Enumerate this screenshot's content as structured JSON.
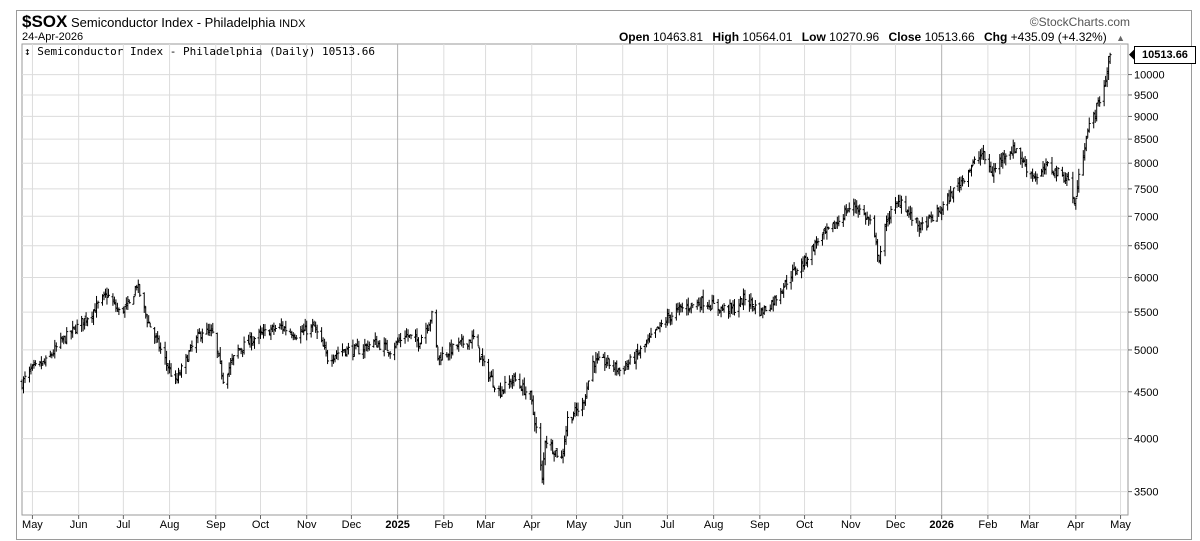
{
  "header": {
    "symbol": "$SOX",
    "name": "Semiconductor Index - Philadelphia",
    "exchange": "INDX",
    "date": "24-Apr-2026",
    "brand": "©StockCharts.com",
    "ohlc": {
      "open_label": "Open",
      "open": "10463.81",
      "high_label": "High",
      "high": "10564.01",
      "low_label": "Low",
      "low": "10270.96",
      "close_label": "Close",
      "close": "10513.66",
      "chg_label": "Chg",
      "chg": "+435.09 (+4.32%)",
      "chg_marker": "▲"
    }
  },
  "legend": {
    "icon": "ohlc-bar-icon",
    "text": "Semiconductor Index - Philadelphia (Daily) 10513.66"
  },
  "last_price_label": "10513.66",
  "chart_data": {
    "type": "ohlc",
    "scale": "log",
    "ylim": [
      3300,
      10800
    ],
    "y_ticks": [
      3500,
      4000,
      4500,
      5000,
      5500,
      6000,
      6500,
      7000,
      7500,
      8000,
      8500,
      9000,
      9500,
      10000
    ],
    "x_ticks": [
      {
        "label": "May",
        "date": "2024-05-01"
      },
      {
        "label": "Jun",
        "date": "2024-06-01"
      },
      {
        "label": "Jul",
        "date": "2024-07-01"
      },
      {
        "label": "Aug",
        "date": "2024-08-01"
      },
      {
        "label": "Sep",
        "date": "2024-09-01"
      },
      {
        "label": "Oct",
        "date": "2024-10-01"
      },
      {
        "label": "Nov",
        "date": "2024-11-01"
      },
      {
        "label": "Dec",
        "date": "2024-12-01"
      },
      {
        "label": "2025",
        "date": "2025-01-01",
        "bold": true
      },
      {
        "label": "Feb",
        "date": "2025-02-01"
      },
      {
        "label": "Mar",
        "date": "2025-03-01"
      },
      {
        "label": "Apr",
        "date": "2025-04-01"
      },
      {
        "label": "May",
        "date": "2025-05-01"
      },
      {
        "label": "Jun",
        "date": "2025-06-01"
      },
      {
        "label": "Jul",
        "date": "2025-07-01"
      },
      {
        "label": "Aug",
        "date": "2025-08-01"
      },
      {
        "label": "Sep",
        "date": "2025-09-01"
      },
      {
        "label": "Oct",
        "date": "2025-10-01"
      },
      {
        "label": "Nov",
        "date": "2025-11-01"
      },
      {
        "label": "Dec",
        "date": "2025-12-01"
      },
      {
        "label": "2026",
        "date": "2026-01-01",
        "bold": true
      },
      {
        "label": "Feb",
        "date": "2026-02-01"
      },
      {
        "label": "Mar",
        "date": "2026-03-01"
      },
      {
        "label": "Apr",
        "date": "2026-04-01"
      },
      {
        "label": "May",
        "date": "2026-05-01"
      }
    ],
    "x_range": [
      "2024-04-24",
      "2026-05-06"
    ],
    "grid": true,
    "price_path": [
      [
        "2024-04-24",
        4600
      ],
      [
        "2024-04-30",
        4750
      ],
      [
        "2024-05-10",
        4850
      ],
      [
        "2024-05-20",
        5100
      ],
      [
        "2024-05-31",
        5300
      ],
      [
        "2024-06-10",
        5500
      ],
      [
        "2024-06-20",
        5750
      ],
      [
        "2024-06-28",
        5500
      ],
      [
        "2024-07-05",
        5600
      ],
      [
        "2024-07-10",
        5900
      ],
      [
        "2024-07-17",
        5400
      ],
      [
        "2024-07-26",
        5000
      ],
      [
        "2024-08-05",
        4600
      ],
      [
        "2024-08-15",
        5000
      ],
      [
        "2024-08-23",
        5250
      ],
      [
        "2024-08-30",
        5200
      ],
      [
        "2024-09-06",
        4650
      ],
      [
        "2024-09-16",
        5000
      ],
      [
        "2024-09-27",
        5150
      ],
      [
        "2024-10-07",
        5250
      ],
      [
        "2024-10-15",
        5300
      ],
      [
        "2024-10-25",
        5200
      ],
      [
        "2024-11-06",
        5300
      ],
      [
        "2024-11-15",
        4900
      ],
      [
        "2024-11-25",
        5000
      ],
      [
        "2024-12-06",
        5000
      ],
      [
        "2024-12-16",
        5100
      ],
      [
        "2024-12-27",
        5000
      ],
      [
        "2025-01-06",
        5200
      ],
      [
        "2025-01-15",
        5100
      ],
      [
        "2025-01-24",
        5450
      ],
      [
        "2025-01-28",
        4900
      ],
      [
        "2025-02-10",
        5050
      ],
      [
        "2025-02-21",
        5150
      ],
      [
        "2025-02-28",
        4800
      ],
      [
        "2025-03-10",
        4500
      ],
      [
        "2025-03-20",
        4650
      ],
      [
        "2025-03-31",
        4450
      ],
      [
        "2025-04-04",
        4100
      ],
      [
        "2025-04-08",
        3600
      ],
      [
        "2025-04-10",
        4000
      ],
      [
        "2025-04-21",
        3800
      ],
      [
        "2025-04-25",
        4200
      ],
      [
        "2025-05-05",
        4350
      ],
      [
        "2025-05-12",
        4850
      ],
      [
        "2025-05-21",
        4850
      ],
      [
        "2025-05-30",
        4750
      ],
      [
        "2025-06-09",
        4900
      ],
      [
        "2025-06-20",
        5150
      ],
      [
        "2025-06-30",
        5400
      ],
      [
        "2025-07-10",
        5550
      ],
      [
        "2025-07-25",
        5650
      ],
      [
        "2025-08-05",
        5550
      ],
      [
        "2025-08-15",
        5550
      ],
      [
        "2025-08-22",
        5700
      ],
      [
        "2025-09-02",
        5500
      ],
      [
        "2025-09-10",
        5650
      ],
      [
        "2025-09-22",
        6050
      ],
      [
        "2025-10-01",
        6250
      ],
      [
        "2025-10-10",
        6600
      ],
      [
        "2025-10-20",
        6800
      ],
      [
        "2025-10-29",
        7100
      ],
      [
        "2025-11-04",
        7200
      ],
      [
        "2025-11-14",
        6900
      ],
      [
        "2025-11-20",
        6300
      ],
      [
        "2025-11-26",
        7000
      ],
      [
        "2025-12-05",
        7300
      ],
      [
        "2025-12-11",
        7000
      ],
      [
        "2025-12-18",
        6800
      ],
      [
        "2025-12-31",
        7100
      ],
      [
        "2026-01-10",
        7500
      ],
      [
        "2026-01-20",
        7900
      ],
      [
        "2026-01-28",
        8200
      ],
      [
        "2026-02-04",
        7800
      ],
      [
        "2026-02-12",
        8200
      ],
      [
        "2026-02-20",
        8300
      ],
      [
        "2026-02-27",
        7900
      ],
      [
        "2026-03-06",
        7700
      ],
      [
        "2026-03-13",
        7950
      ],
      [
        "2026-03-20",
        7800
      ],
      [
        "2026-03-27",
        7700
      ],
      [
        "2026-03-31",
        7200
      ],
      [
        "2026-04-03",
        7700
      ],
      [
        "2026-04-08",
        8600
      ],
      [
        "2026-04-14",
        9100
      ],
      [
        "2026-04-20",
        9700
      ],
      [
        "2026-04-24",
        10513.66
      ]
    ]
  },
  "colors": {
    "bar": "#000000",
    "grid": "#dcdcdc",
    "frame": "#9a9a9a"
  }
}
